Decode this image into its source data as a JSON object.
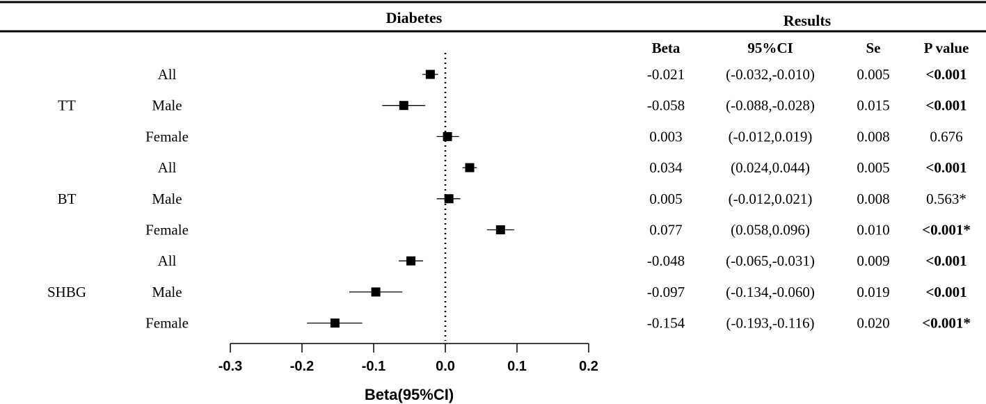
{
  "chart_data": {
    "type": "forest",
    "title": "Diabetes",
    "results_title": "Results",
    "xlabel": "Beta(95%CI)",
    "xlim": [
      -0.3,
      0.2
    ],
    "xticks": [
      -0.3,
      -0.2,
      -0.1,
      0.0,
      0.1,
      0.2
    ],
    "xtick_labels": [
      "-0.3",
      "-0.2",
      "-0.1",
      "0.0",
      "0.1",
      "0.2"
    ],
    "reference_line": 0,
    "table_headers": [
      "Beta",
      "95%CI",
      "Se",
      "P value"
    ],
    "groups": [
      "TT",
      "BT",
      "SHBG"
    ],
    "rows": [
      {
        "group": "TT",
        "group_label": "",
        "label": "All",
        "beta": -0.021,
        "lo": -0.032,
        "hi": -0.01,
        "beta_text": "-0.021",
        "ci_text": "(-0.032,-0.010)",
        "se_text": "0.005",
        "p_text": "<0.001",
        "p_bold": true
      },
      {
        "group": "TT",
        "group_label": "TT",
        "label": "Male",
        "beta": -0.058,
        "lo": -0.088,
        "hi": -0.028,
        "beta_text": "-0.058",
        "ci_text": "(-0.088,-0.028)",
        "se_text": "0.015",
        "p_text": "<0.001",
        "p_bold": true
      },
      {
        "group": "TT",
        "group_label": "",
        "label": "Female",
        "beta": 0.003,
        "lo": -0.012,
        "hi": 0.019,
        "beta_text": "0.003",
        "ci_text": "(-0.012,0.019)",
        "se_text": "0.008",
        "p_text": "0.676",
        "p_bold": false
      },
      {
        "group": "BT",
        "group_label": "",
        "label": "All",
        "beta": 0.034,
        "lo": 0.024,
        "hi": 0.044,
        "beta_text": "0.034",
        "ci_text": "(0.024,0.044)",
        "se_text": "0.005",
        "p_text": "<0.001",
        "p_bold": true
      },
      {
        "group": "BT",
        "group_label": "BT",
        "label": "Male",
        "beta": 0.005,
        "lo": -0.012,
        "hi": 0.021,
        "beta_text": "0.005",
        "ci_text": "(-0.012,0.021)",
        "se_text": "0.008",
        "p_text": "0.563*",
        "p_bold": false
      },
      {
        "group": "BT",
        "group_label": "",
        "label": "Female",
        "beta": 0.077,
        "lo": 0.058,
        "hi": 0.096,
        "beta_text": "0.077",
        "ci_text": "(0.058,0.096)",
        "se_text": "0.010",
        "p_text": "<0.001*",
        "p_bold": true
      },
      {
        "group": "SHBG",
        "group_label": "",
        "label": "All",
        "beta": -0.048,
        "lo": -0.065,
        "hi": -0.031,
        "beta_text": "-0.048",
        "ci_text": "(-0.065,-0.031)",
        "se_text": "0.009",
        "p_text": "<0.001",
        "p_bold": true
      },
      {
        "group": "SHBG",
        "group_label": "SHBG",
        "label": "Male",
        "beta": -0.097,
        "lo": -0.134,
        "hi": -0.06,
        "beta_text": "-0.097",
        "ci_text": "(-0.134,-0.060)",
        "se_text": "0.019",
        "p_text": "<0.001",
        "p_bold": true
      },
      {
        "group": "SHBG",
        "group_label": "",
        "label": "Female",
        "beta": -0.154,
        "lo": -0.193,
        "hi": -0.116,
        "beta_text": "-0.154",
        "ci_text": "(-0.193,-0.116)",
        "se_text": "0.020",
        "p_text": "<0.001*",
        "p_bold": true
      }
    ]
  }
}
